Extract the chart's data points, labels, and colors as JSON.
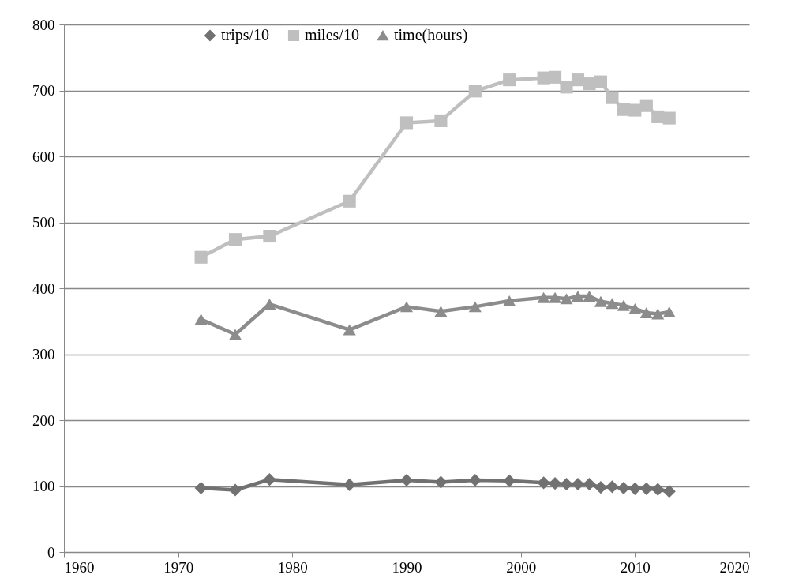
{
  "chart_data": {
    "type": "line",
    "x": [
      1972,
      1975,
      1978,
      1985,
      1990,
      1993,
      1996,
      1999,
      2002,
      2003,
      2004,
      2005,
      2006,
      2007,
      2008,
      2009,
      2010,
      2011,
      2012,
      2013
    ],
    "series": [
      {
        "name": "trips/10",
        "color": "#717171",
        "marker": "diamond",
        "values": [
          97,
          94,
          110,
          102,
          109,
          106,
          109,
          108,
          105,
          104,
          103,
          103,
          103,
          98,
          99,
          97,
          96,
          96,
          95,
          92
        ]
      },
      {
        "name": "miles/10",
        "color": "#bfbfbf",
        "marker": "square",
        "values": [
          447,
          474,
          479,
          532,
          651,
          654,
          699,
          716,
          719,
          720,
          705,
          716,
          710,
          713,
          689,
          671,
          670,
          677,
          660,
          658
        ]
      },
      {
        "name": "time(hours)",
        "color": "#8c8c8c",
        "marker": "triangle",
        "values": [
          353,
          330,
          376,
          337,
          372,
          365,
          372,
          381,
          386,
          386,
          384,
          388,
          388,
          380,
          377,
          374,
          369,
          363,
          361,
          364
        ]
      }
    ],
    "xlim": [
      1960,
      2020
    ],
    "xticks": [
      1960,
      1970,
      1980,
      1990,
      2000,
      2010,
      2020
    ],
    "ylim": [
      0,
      800
    ],
    "yticks": [
      0,
      100,
      200,
      300,
      400,
      500,
      600,
      700,
      800
    ],
    "grid": "y",
    "legend": "top",
    "line_style": "solid"
  }
}
